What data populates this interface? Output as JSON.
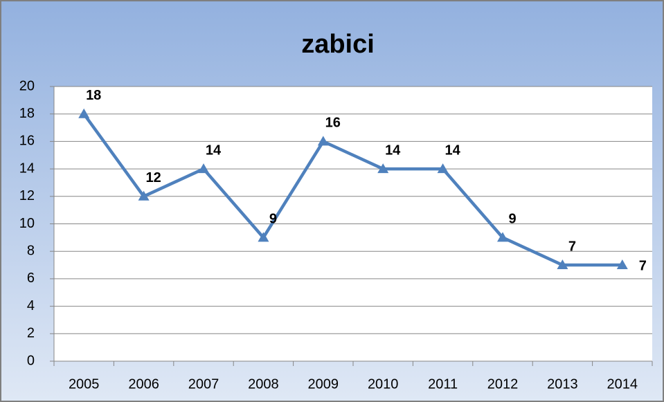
{
  "chart_data": {
    "type": "line",
    "title": "zabici",
    "categories": [
      "2005",
      "2006",
      "2007",
      "2008",
      "2009",
      "2010",
      "2011",
      "2012",
      "2013",
      "2014"
    ],
    "values": [
      18,
      12,
      14,
      9,
      16,
      14,
      14,
      9,
      7,
      7
    ],
    "color": "#4f81bd",
    "ylim": [
      0,
      20
    ],
    "yticks": [
      0,
      2,
      4,
      6,
      8,
      10,
      12,
      14,
      16,
      18,
      20
    ],
    "grid": true
  }
}
